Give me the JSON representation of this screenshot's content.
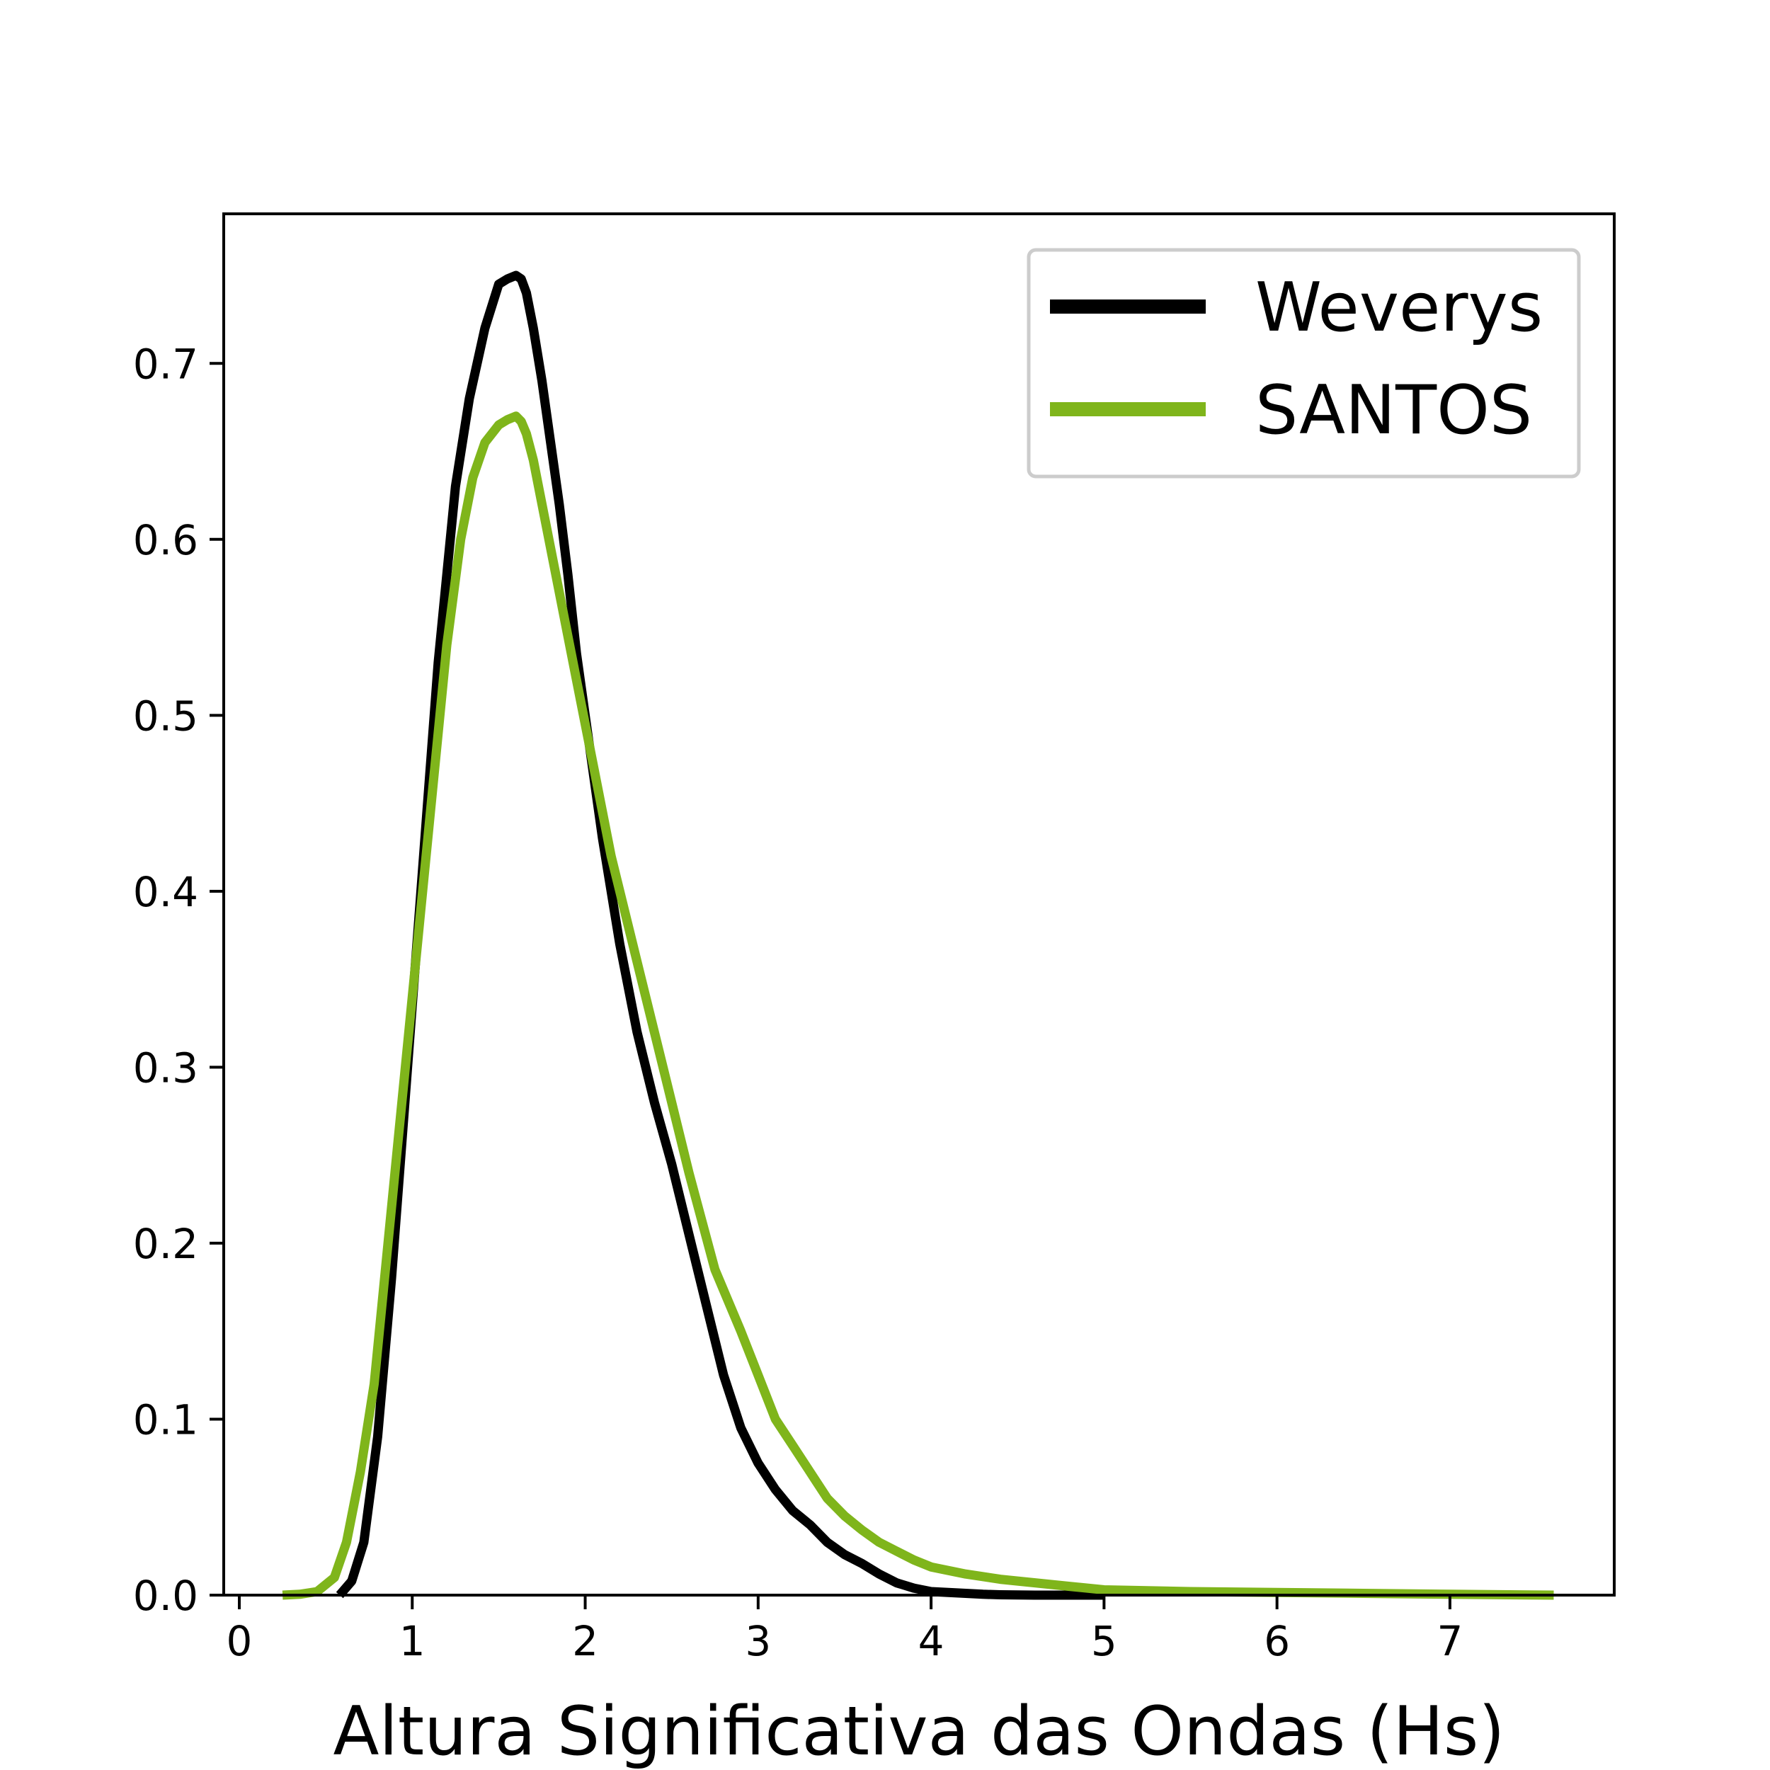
{
  "chart_data": {
    "type": "line",
    "title": "",
    "xlabel": "Altura Significativa das Ondas (Hs)",
    "ylabel": "",
    "xlim": [
      -0.09,
      7.95
    ],
    "ylim": [
      0.0,
      0.785
    ],
    "xticks": [
      "0",
      "1",
      "2",
      "3",
      "4",
      "5",
      "6",
      "7"
    ],
    "yticks": [
      "0.0",
      "0.1",
      "0.2",
      "0.3",
      "0.4",
      "0.5",
      "0.6",
      "0.7"
    ],
    "grid": false,
    "legend_position": "upper right",
    "series": [
      {
        "name": "Weverys",
        "color": "#000000",
        "x": [
          0.58,
          0.65,
          0.72,
          0.8,
          0.88,
          0.95,
          1.05,
          1.15,
          1.25,
          1.33,
          1.42,
          1.5,
          1.55,
          1.6,
          1.63,
          1.66,
          1.7,
          1.75,
          1.8,
          1.85,
          1.9,
          1.95,
          2.0,
          2.1,
          2.2,
          2.3,
          2.4,
          2.5,
          2.6,
          2.7,
          2.8,
          2.9,
          3.0,
          3.1,
          3.2,
          3.3,
          3.4,
          3.5,
          3.6,
          3.7,
          3.8,
          3.9,
          4.0,
          4.1,
          4.2,
          4.3,
          4.4,
          4.5,
          4.6,
          4.7,
          4.8,
          4.9,
          5.0
        ],
        "y": [
          0.0,
          0.008,
          0.03,
          0.09,
          0.18,
          0.27,
          0.4,
          0.53,
          0.63,
          0.68,
          0.72,
          0.745,
          0.748,
          0.75,
          0.748,
          0.74,
          0.72,
          0.69,
          0.655,
          0.62,
          0.58,
          0.535,
          0.5,
          0.43,
          0.37,
          0.32,
          0.28,
          0.245,
          0.205,
          0.165,
          0.125,
          0.095,
          0.075,
          0.06,
          0.048,
          0.04,
          0.03,
          0.023,
          0.018,
          0.012,
          0.007,
          0.004,
          0.002,
          0.0015,
          0.001,
          0.0005,
          0.0002,
          0.0001,
          0.0,
          0.0,
          0.0,
          0.0,
          0.0
        ]
      },
      {
        "name": "SANTOS",
        "color": "#7fb51b",
        "x": [
          0.25,
          0.35,
          0.45,
          0.55,
          0.62,
          0.7,
          0.78,
          0.85,
          0.92,
          1.0,
          1.1,
          1.2,
          1.28,
          1.35,
          1.42,
          1.5,
          1.55,
          1.6,
          1.63,
          1.66,
          1.7,
          1.75,
          1.85,
          1.95,
          2.05,
          2.15,
          2.3,
          2.45,
          2.6,
          2.75,
          2.9,
          3.0,
          3.1,
          3.2,
          3.3,
          3.4,
          3.5,
          3.6,
          3.7,
          3.8,
          3.9,
          4.0,
          4.2,
          4.4,
          4.6,
          4.8,
          5.0,
          5.5,
          6.0,
          6.5,
          7.0,
          7.6
        ],
        "y": [
          0.0,
          0.0005,
          0.002,
          0.01,
          0.03,
          0.07,
          0.12,
          0.19,
          0.26,
          0.34,
          0.44,
          0.54,
          0.6,
          0.635,
          0.655,
          0.665,
          0.668,
          0.67,
          0.667,
          0.66,
          0.645,
          0.62,
          0.57,
          0.52,
          0.47,
          0.42,
          0.36,
          0.3,
          0.24,
          0.185,
          0.15,
          0.125,
          0.1,
          0.085,
          0.07,
          0.055,
          0.045,
          0.037,
          0.03,
          0.025,
          0.02,
          0.016,
          0.012,
          0.009,
          0.007,
          0.005,
          0.003,
          0.002,
          0.0015,
          0.001,
          0.0005,
          0.0
        ]
      }
    ]
  }
}
